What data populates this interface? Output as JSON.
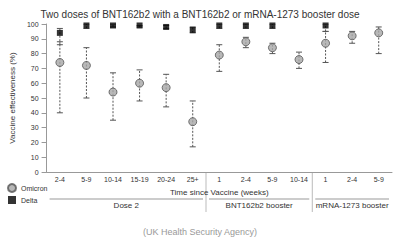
{
  "chart_data": {
    "type": "scatter",
    "title": "Two doses of BNT162b2 with a BNT162b2 or mRNA-1273 booster dose",
    "source": "(UK Health Security Agency)",
    "x_label": "Time since Vaccine (weeks)",
    "y_label": "Vaccine effectiveness (%)",
    "groups": [
      {
        "label": "Dose 2",
        "categories": [
          "2-4",
          "5-9",
          "10-14",
          "15-19",
          "20-24",
          "25+"
        ]
      },
      {
        "label": "BNT162b2 booster",
        "categories": [
          "1",
          "2-4",
          "5-9",
          "10-14"
        ]
      },
      {
        "label": "mRNA-1273 booster",
        "categories": [
          "1",
          "2-4",
          "5-9"
        ]
      }
    ],
    "ylim": [
      0,
      100
    ],
    "yticks": [
      0,
      10,
      20,
      30,
      40,
      50,
      60,
      70,
      80,
      90,
      100
    ],
    "grid": false,
    "legend": "lower left",
    "series": [
      {
        "name": "Omicron",
        "color": "#a6a6a6",
        "marker": "circle",
        "values": [
          74,
          72,
          54,
          60,
          57,
          34,
          79,
          88,
          84,
          76,
          87,
          92,
          94
        ],
        "lower": [
          40,
          50,
          35,
          48,
          44,
          17,
          68,
          84,
          80,
          70,
          74,
          87,
          80
        ],
        "upper": [
          88,
          84,
          67,
          69,
          66,
          48,
          86,
          91,
          87,
          81,
          95,
          95,
          98
        ]
      },
      {
        "name": "Delta",
        "color": "#000000",
        "marker": "square",
        "values": [
          94,
          99,
          99,
          99,
          98,
          96,
          99,
          99,
          99,
          null,
          99,
          null,
          null
        ],
        "lower": [
          86,
          97,
          98,
          98,
          97,
          94,
          97,
          97,
          97,
          null,
          95,
          null,
          null
        ],
        "upper": [
          97,
          100,
          100,
          99,
          99,
          98,
          100,
          100,
          100,
          null,
          100,
          null,
          null
        ]
      }
    ]
  }
}
